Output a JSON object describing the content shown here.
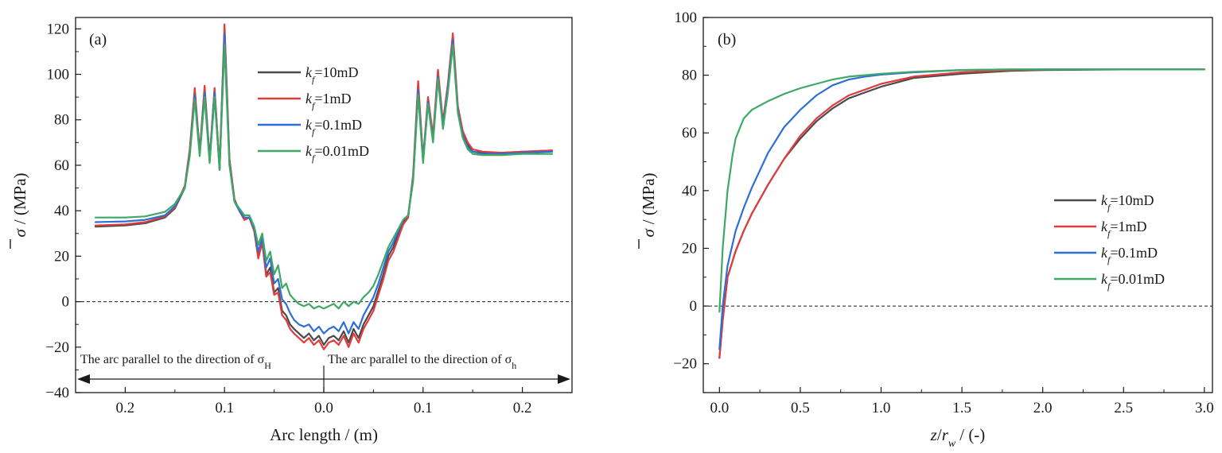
{
  "colors": {
    "k10": "#4a4a4a",
    "k1": "#e23b3b",
    "k01": "#2d6fd6",
    "k001": "#3fa864",
    "axis": "#1a1a1a"
  },
  "chart_data": [
    {
      "type": "line",
      "panel_label": "(a)",
      "xlabel": "Arc length / (m)",
      "ylabel_symbol": "σ",
      "ylabel_unit": "/ (MPa)",
      "xlim": [
        -0.25,
        0.25
      ],
      "ylim": [
        -40,
        125
      ],
      "yticks": [
        -40,
        -20,
        0,
        20,
        40,
        60,
        80,
        100,
        120
      ],
      "yticks_labels": [
        "−40",
        "−20",
        "0",
        "20",
        "40",
        "60",
        "80",
        "100",
        "120"
      ],
      "xticks": [
        -0.2,
        -0.1,
        0,
        0.1,
        0.2
      ],
      "xtick_labels": [
        "0.2",
        "0.1",
        "0.0",
        "0.1",
        "0.2"
      ],
      "reference_line_y": 0,
      "annotations": {
        "left_text": "The arc parallel to the direction of σ",
        "left_sub": "H",
        "right_text": "The arc parallel to the direction of σ",
        "right_sub": "h"
      },
      "legend": [
        {
          "var": "k",
          "sub": "f",
          "text": "=10mD"
        },
        {
          "var": "k",
          "sub": "f",
          "text": "=1mD"
        },
        {
          "var": "k",
          "sub": "f",
          "text": "=0.1mD"
        },
        {
          "var": "k",
          "sub": "f",
          "text": "=0.01mD"
        }
      ],
      "series": [
        {
          "name": "kf=10mD",
          "color_key": "k10",
          "x": [
            -0.23,
            -0.2,
            -0.18,
            -0.16,
            -0.15,
            -0.14,
            -0.135,
            -0.13,
            -0.125,
            -0.12,
            -0.115,
            -0.11,
            -0.105,
            -0.1,
            -0.095,
            -0.09,
            -0.085,
            -0.08,
            -0.075,
            -0.07,
            -0.066,
            -0.062,
            -0.058,
            -0.054,
            -0.05,
            -0.046,
            -0.042,
            -0.038,
            -0.034,
            -0.03,
            -0.025,
            -0.02,
            -0.015,
            -0.01,
            -0.005,
            0,
            0.005,
            0.01,
            0.015,
            0.02,
            0.025,
            0.03,
            0.035,
            0.04,
            0.045,
            0.05,
            0.055,
            0.06,
            0.065,
            0.07,
            0.075,
            0.08,
            0.085,
            0.09,
            0.095,
            0.1,
            0.105,
            0.11,
            0.115,
            0.12,
            0.125,
            0.13,
            0.135,
            0.14,
            0.145,
            0.15,
            0.16,
            0.18,
            0.2,
            0.23
          ],
          "y": [
            33,
            33.5,
            34.5,
            37,
            41,
            50,
            66,
            92,
            65,
            93,
            62,
            93,
            58,
            120,
            62,
            45,
            40,
            36,
            37,
            31,
            20,
            27,
            12,
            15,
            4,
            6,
            -4,
            -6,
            -10,
            -12,
            -14,
            -16,
            -14,
            -17,
            -15,
            -19,
            -16,
            -15,
            -17,
            -13,
            -18,
            -12,
            -16,
            -10,
            -6,
            -2,
            5,
            12,
            20,
            24,
            30,
            35,
            38,
            55,
            95,
            62,
            88,
            72,
            100,
            78,
            95,
            116,
            85,
            74,
            69,
            66,
            65.5,
            65.5,
            66,
            66.5
          ]
        },
        {
          "name": "kf=1mD",
          "color_key": "k1",
          "x": [
            -0.23,
            -0.2,
            -0.18,
            -0.16,
            -0.15,
            -0.14,
            -0.135,
            -0.13,
            -0.125,
            -0.12,
            -0.115,
            -0.11,
            -0.105,
            -0.1,
            -0.095,
            -0.09,
            -0.085,
            -0.08,
            -0.075,
            -0.07,
            -0.066,
            -0.062,
            -0.058,
            -0.054,
            -0.05,
            -0.046,
            -0.042,
            -0.038,
            -0.034,
            -0.03,
            -0.025,
            -0.02,
            -0.015,
            -0.01,
            -0.005,
            0,
            0.005,
            0.01,
            0.015,
            0.02,
            0.025,
            0.03,
            0.035,
            0.04,
            0.045,
            0.05,
            0.055,
            0.06,
            0.065,
            0.07,
            0.075,
            0.08,
            0.085,
            0.09,
            0.095,
            0.1,
            0.105,
            0.11,
            0.115,
            0.12,
            0.125,
            0.13,
            0.135,
            0.14,
            0.145,
            0.15,
            0.16,
            0.18,
            0.2,
            0.23
          ],
          "y": [
            33.5,
            34,
            35,
            37.5,
            41.5,
            51,
            67,
            94,
            66,
            95,
            63,
            94,
            59,
            122,
            63,
            45,
            40,
            36,
            37,
            31,
            19,
            26,
            11,
            13,
            3,
            4,
            -6,
            -8,
            -12,
            -14,
            -16,
            -18,
            -16,
            -19,
            -17,
            -21,
            -18,
            -17,
            -19,
            -15,
            -20,
            -14,
            -18,
            -12,
            -8,
            -4,
            3,
            10,
            18,
            22,
            28,
            34,
            37,
            56,
            97,
            63,
            90,
            73,
            102,
            79,
            96,
            118,
            86,
            75,
            70,
            67,
            66,
            65.5,
            66,
            66.5
          ]
        },
        {
          "name": "kf=0.1mD",
          "color_key": "k01",
          "x": [
            -0.23,
            -0.2,
            -0.18,
            -0.16,
            -0.15,
            -0.14,
            -0.135,
            -0.13,
            -0.125,
            -0.12,
            -0.115,
            -0.11,
            -0.105,
            -0.1,
            -0.095,
            -0.09,
            -0.085,
            -0.08,
            -0.075,
            -0.07,
            -0.066,
            -0.062,
            -0.058,
            -0.054,
            -0.05,
            -0.046,
            -0.042,
            -0.038,
            -0.034,
            -0.03,
            -0.025,
            -0.02,
            -0.015,
            -0.01,
            -0.005,
            0,
            0.005,
            0.01,
            0.015,
            0.02,
            0.025,
            0.03,
            0.035,
            0.04,
            0.045,
            0.05,
            0.055,
            0.06,
            0.065,
            0.07,
            0.075,
            0.08,
            0.085,
            0.09,
            0.095,
            0.1,
            0.105,
            0.11,
            0.115,
            0.12,
            0.125,
            0.13,
            0.135,
            0.14,
            0.145,
            0.15,
            0.16,
            0.18,
            0.2,
            0.23
          ],
          "y": [
            35,
            35.3,
            36,
            38,
            42,
            50,
            65,
            91,
            65,
            92,
            62,
            92,
            58,
            118,
            61,
            44,
            40,
            37,
            37,
            32,
            22,
            28,
            15,
            19,
            8,
            10,
            1,
            -1,
            -5,
            -8,
            -10,
            -11,
            -10,
            -13,
            -11,
            -14,
            -12,
            -11,
            -13,
            -9,
            -14,
            -9,
            -12,
            -6,
            -2,
            2,
            8,
            15,
            22,
            26,
            31,
            36,
            38,
            54,
            93,
            62,
            88,
            71,
            99,
            77,
            94,
            115,
            84,
            73,
            68,
            66,
            65,
            65,
            65.5,
            66
          ]
        },
        {
          "name": "kf=0.01mD",
          "color_key": "k001",
          "x": [
            -0.23,
            -0.2,
            -0.18,
            -0.16,
            -0.15,
            -0.14,
            -0.135,
            -0.13,
            -0.125,
            -0.12,
            -0.115,
            -0.11,
            -0.105,
            -0.1,
            -0.095,
            -0.09,
            -0.085,
            -0.08,
            -0.075,
            -0.07,
            -0.066,
            -0.062,
            -0.058,
            -0.054,
            -0.05,
            -0.046,
            -0.042,
            -0.038,
            -0.034,
            -0.03,
            -0.025,
            -0.02,
            -0.015,
            -0.01,
            -0.005,
            0,
            0.005,
            0.01,
            0.015,
            0.02,
            0.025,
            0.03,
            0.035,
            0.04,
            0.045,
            0.05,
            0.055,
            0.06,
            0.065,
            0.07,
            0.075,
            0.08,
            0.085,
            0.09,
            0.095,
            0.1,
            0.105,
            0.11,
            0.115,
            0.12,
            0.125,
            0.13,
            0.135,
            0.14,
            0.145,
            0.15,
            0.16,
            0.18,
            0.2,
            0.23
          ],
          "y": [
            37,
            37,
            37.5,
            39.5,
            43,
            50,
            64,
            89,
            64,
            90,
            61,
            90,
            58,
            113,
            60,
            44,
            41,
            38,
            38,
            33,
            25,
            30,
            18,
            22,
            12,
            16,
            6,
            8,
            3,
            1,
            -1,
            -2,
            -1,
            -3,
            -2,
            -3,
            -2,
            -1,
            -3,
            0,
            -2,
            0,
            -1,
            2,
            4,
            7,
            12,
            18,
            24,
            28,
            32,
            36,
            38,
            53,
            91,
            61,
            87,
            70,
            98,
            76,
            92,
            113,
            83,
            72,
            67,
            65,
            64.5,
            64.5,
            65,
            65
          ]
        }
      ]
    },
    {
      "type": "line",
      "panel_label": "(b)",
      "xlabel_var": "z",
      "xlabel_mid": "/",
      "xlabel_var2": "r",
      "xlabel_sub": "w",
      "xlabel_unit": "/ (-)",
      "ylabel_symbol": "σ",
      "ylabel_unit": "/ (MPa)",
      "xlim": [
        -0.1,
        3.05
      ],
      "ylim": [
        -30,
        100
      ],
      "yticks": [
        -20,
        0,
        20,
        40,
        60,
        80,
        100
      ],
      "yticks_labels": [
        "−20",
        "0",
        "20",
        "40",
        "60",
        "80",
        "100"
      ],
      "xticks": [
        0,
        0.5,
        1.0,
        1.5,
        2.0,
        2.5,
        3.0
      ],
      "xtick_labels": [
        "0.0",
        "0.5",
        "1.0",
        "1.5",
        "2.0",
        "2.5",
        "3.0"
      ],
      "reference_line_y": 0,
      "legend": [
        {
          "var": "k",
          "sub": "f",
          "text": "=10mD"
        },
        {
          "var": "k",
          "sub": "f",
          "text": "=1mD"
        },
        {
          "var": "k",
          "sub": "f",
          "text": "=0.1mD"
        },
        {
          "var": "k",
          "sub": "f",
          "text": "=0.01mD"
        }
      ],
      "series": [
        {
          "name": "kf=10mD",
          "color_key": "k10",
          "x": [
            0,
            0.02,
            0.05,
            0.1,
            0.15,
            0.2,
            0.3,
            0.4,
            0.5,
            0.6,
            0.7,
            0.8,
            0.9,
            1.0,
            1.2,
            1.5,
            1.8,
            2.0,
            2.5,
            3.0
          ],
          "y": [
            -18,
            -5,
            10,
            19,
            26,
            32,
            42,
            51,
            58,
            64,
            68.5,
            72,
            74,
            76,
            79,
            80.5,
            81.5,
            81.8,
            82,
            82
          ]
        },
        {
          "name": "kf=1mD",
          "color_key": "k1",
          "x": [
            0,
            0.02,
            0.05,
            0.1,
            0.15,
            0.2,
            0.3,
            0.4,
            0.5,
            0.6,
            0.7,
            0.8,
            0.9,
            1.0,
            1.2,
            1.5,
            1.8,
            2.0,
            2.5,
            3.0
          ],
          "y": [
            -18,
            -5,
            10,
            19,
            26,
            32,
            42,
            51,
            59,
            65,
            69.5,
            73,
            75,
            77,
            79.5,
            81,
            81.8,
            82,
            82,
            82
          ]
        },
        {
          "name": "kf=0.1mD",
          "color_key": "k01",
          "x": [
            0,
            0.02,
            0.05,
            0.1,
            0.15,
            0.2,
            0.3,
            0.4,
            0.5,
            0.6,
            0.7,
            0.8,
            0.9,
            1.0,
            1.2,
            1.5,
            1.8,
            2.0,
            2.5,
            3.0
          ],
          "y": [
            -15,
            0,
            14,
            26,
            34,
            41,
            53,
            62,
            68,
            73,
            76.5,
            78.5,
            79.5,
            80.2,
            81,
            81.8,
            82,
            82,
            82,
            82
          ]
        },
        {
          "name": "kf=0.01mD",
          "color_key": "k001",
          "x": [
            0,
            0.02,
            0.05,
            0.08,
            0.1,
            0.15,
            0.2,
            0.3,
            0.4,
            0.5,
            0.6,
            0.7,
            0.8,
            0.9,
            1.0,
            1.2,
            1.5,
            1.8,
            2.0,
            2.5,
            3.0
          ],
          "y": [
            -2,
            20,
            40,
            52,
            58,
            65,
            68,
            71,
            73.5,
            75.5,
            77,
            78.5,
            79.5,
            80,
            80.5,
            81.2,
            81.8,
            82,
            82,
            82,
            82
          ]
        }
      ]
    }
  ]
}
